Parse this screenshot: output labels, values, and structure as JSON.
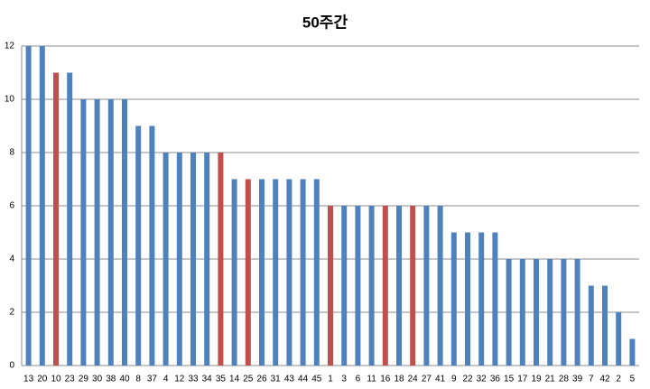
{
  "chart_data": {
    "type": "bar",
    "title": "50주간",
    "categories": [
      "13",
      "20",
      "10",
      "23",
      "29",
      "30",
      "38",
      "40",
      "8",
      "37",
      "4",
      "12",
      "33",
      "34",
      "35",
      "14",
      "25",
      "26",
      "31",
      "43",
      "44",
      "45",
      "1",
      "3",
      "6",
      "11",
      "16",
      "18",
      "24",
      "27",
      "41",
      "9",
      "22",
      "32",
      "36",
      "15",
      "17",
      "19",
      "21",
      "28",
      "39",
      "7",
      "42",
      "2",
      "5"
    ],
    "values": [
      12,
      12,
      11,
      11,
      10,
      10,
      10,
      10,
      9,
      9,
      8,
      8,
      8,
      8,
      8,
      7,
      7,
      7,
      7,
      7,
      7,
      7,
      6,
      6,
      6,
      6,
      6,
      6,
      6,
      6,
      6,
      5,
      5,
      5,
      5,
      4,
      4,
      4,
      4,
      4,
      4,
      3,
      3,
      2,
      1
    ],
    "colors": [
      "#4f81bd",
      "#4f81bd",
      "#c0504d",
      "#4f81bd",
      "#4f81bd",
      "#4f81bd",
      "#4f81bd",
      "#4f81bd",
      "#4f81bd",
      "#4f81bd",
      "#4f81bd",
      "#4f81bd",
      "#4f81bd",
      "#4f81bd",
      "#c0504d",
      "#4f81bd",
      "#c0504d",
      "#4f81bd",
      "#4f81bd",
      "#4f81bd",
      "#4f81bd",
      "#4f81bd",
      "#c0504d",
      "#4f81bd",
      "#4f81bd",
      "#4f81bd",
      "#c0504d",
      "#4f81bd",
      "#c0504d",
      "#4f81bd",
      "#4f81bd",
      "#4f81bd",
      "#4f81bd",
      "#4f81bd",
      "#4f81bd",
      "#4f81bd",
      "#4f81bd",
      "#4f81bd",
      "#4f81bd",
      "#4f81bd",
      "#4f81bd",
      "#4f81bd",
      "#4f81bd",
      "#4f81bd",
      "#4f81bd"
    ],
    "ylim": [
      0,
      12
    ],
    "yticks": [
      0,
      2,
      4,
      6,
      8,
      10,
      12
    ],
    "grid": true
  }
}
